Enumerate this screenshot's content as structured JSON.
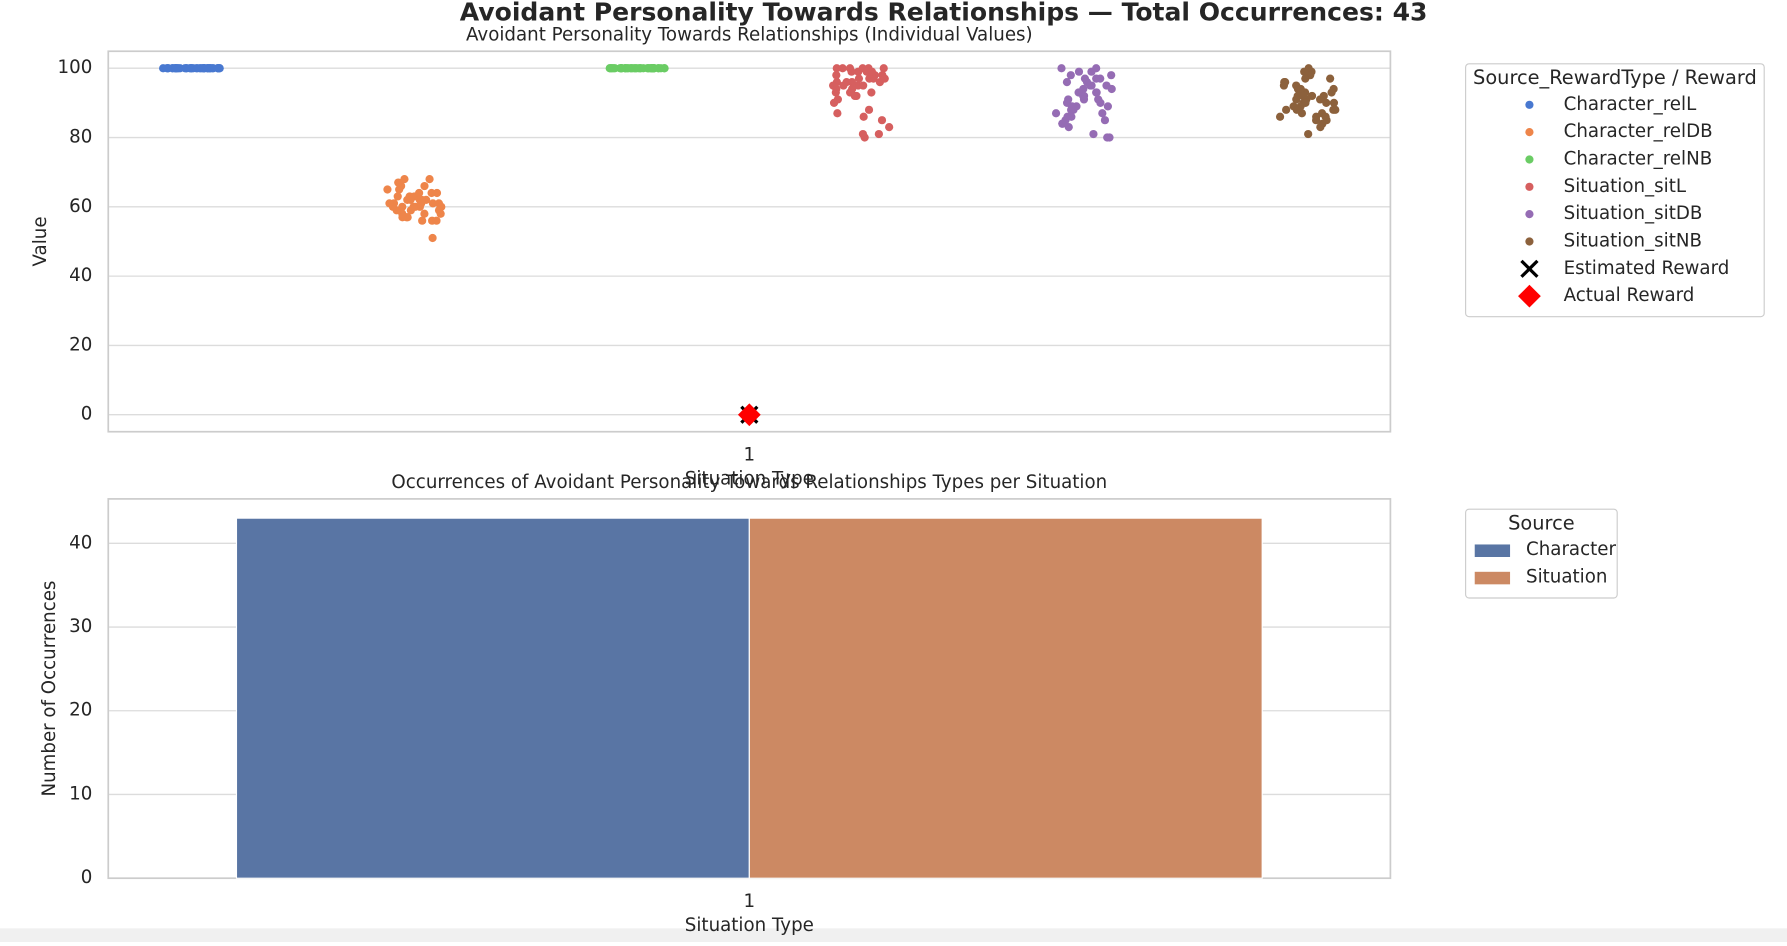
{
  "title": "Avoidant Personality Towards Relationships — Total Occurrences: 43",
  "chart_data": [
    {
      "type": "strip",
      "title": "Avoidant Personality Towards Relationships (Individual Values)",
      "x_label": "Situation Type",
      "y_label": "Value",
      "categories": [
        "1"
      ],
      "ylim": [
        -4.9,
        104.9
      ],
      "yticks": [
        0,
        20,
        40,
        60,
        80,
        100
      ],
      "grid": true,
      "legend_title": "Source_RewardType / Reward",
      "legend": "outside-upper-right",
      "series": [
        {
          "name": "Character_relL",
          "color": "#4878d0",
          "marker": "circle",
          "values": [
            100,
            100,
            100,
            100,
            100,
            100,
            100,
            100,
            100,
            100,
            100,
            100,
            100,
            100,
            100,
            100,
            100,
            100,
            100,
            100,
            100,
            100,
            100,
            100,
            100,
            100,
            100,
            100,
            100,
            100,
            100,
            100,
            100,
            100,
            100,
            100,
            100,
            100,
            100,
            100,
            100,
            100,
            100
          ]
        },
        {
          "name": "Character_relDB",
          "color": "#ee854a",
          "marker": "circle",
          "values": [
            60,
            62,
            58,
            65,
            61,
            63,
            57,
            59,
            66,
            68,
            60,
            64,
            56,
            62,
            61,
            58,
            67,
            60,
            63,
            57,
            59,
            62,
            65,
            51,
            60,
            61,
            56,
            64,
            58,
            62,
            66,
            60,
            59,
            63,
            57,
            61,
            68,
            60,
            62,
            56,
            64,
            59,
            61
          ]
        },
        {
          "name": "Character_relNB",
          "color": "#6acc64",
          "marker": "circle",
          "values": [
            100,
            100,
            100,
            100,
            100,
            100,
            100,
            100,
            100,
            100,
            100,
            100,
            100,
            100,
            100,
            100,
            100,
            100,
            100,
            100,
            100,
            100,
            100,
            100,
            100,
            100,
            100,
            100,
            100,
            100,
            100,
            100,
            100,
            100,
            100,
            100,
            100,
            100,
            100,
            100,
            100,
            100,
            100
          ]
        },
        {
          "name": "Situation_sitL",
          "color": "#d65f5f",
          "marker": "circle",
          "values": [
            100,
            98,
            97,
            95,
            100,
            99,
            96,
            93,
            92,
            90,
            88,
            85,
            81,
            80,
            100,
            99,
            98,
            97,
            96,
            95,
            94,
            93,
            92,
            91,
            87,
            86,
            83,
            81,
            100,
            99,
            98,
            97,
            96,
            100,
            95,
            94,
            97,
            98,
            99,
            100,
            93,
            96,
            95
          ]
        },
        {
          "name": "Situation_sitDB",
          "color": "#956cb4",
          "marker": "circle",
          "values": [
            100,
            99,
            98,
            97,
            96,
            95,
            94,
            93,
            92,
            91,
            90,
            89,
            88,
            87,
            86,
            85,
            84,
            83,
            81,
            80,
            80,
            100,
            98,
            97,
            95,
            93,
            92,
            90,
            88,
            86,
            84,
            96,
            94,
            91,
            89,
            87,
            85,
            99,
            97,
            95,
            93,
            91,
            89
          ]
        },
        {
          "name": "Situation_sitNB",
          "color": "#8c613c",
          "marker": "circle",
          "values": [
            100,
            99,
            98,
            97,
            96,
            95,
            94,
            93,
            92,
            91,
            90,
            89,
            88,
            87,
            86,
            85,
            84,
            83,
            81,
            99,
            97,
            95,
            93,
            91,
            89,
            87,
            85,
            92,
            90,
            88,
            86,
            94,
            92,
            90,
            88,
            96,
            94,
            92,
            90,
            88,
            86,
            93,
            91
          ]
        },
        {
          "name": "Estimated Reward",
          "color": "#000000",
          "marker": "x",
          "values": [
            0
          ]
        },
        {
          "name": "Actual Reward",
          "color": "#ff0000",
          "marker": "diamond",
          "values": [
            0
          ]
        }
      ]
    },
    {
      "type": "bar",
      "title": "Occurrences of Avoidant Personality Towards Relationships Types per Situation",
      "x_label": "Situation Type",
      "y_label": "Number of Occurrences",
      "categories": [
        "1"
      ],
      "ylim": [
        0,
        45.3
      ],
      "yticks": [
        0,
        10,
        20,
        30,
        40
      ],
      "grid": true,
      "legend_title": "Source",
      "legend": "outside-upper-right",
      "series": [
        {
          "name": "Character",
          "color": "#5975a4",
          "values": [
            43
          ]
        },
        {
          "name": "Situation",
          "color": "#cc8963",
          "values": [
            43
          ]
        }
      ]
    }
  ]
}
